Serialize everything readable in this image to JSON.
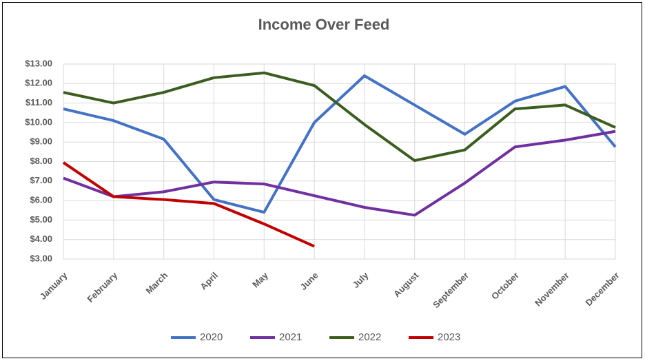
{
  "chart_data": {
    "type": "line",
    "title": "Income Over Feed",
    "categories": [
      "January",
      "February",
      "March",
      "April",
      "May",
      "June",
      "July",
      "August",
      "September",
      "October",
      "November",
      "December"
    ],
    "series": [
      {
        "name": "2020",
        "color": "#4472c4",
        "values": [
          10.7,
          10.1,
          9.15,
          6.05,
          5.4,
          10.0,
          12.4,
          10.9,
          9.4,
          11.1,
          11.85,
          8.75
        ]
      },
      {
        "name": "2021",
        "color": "#7030a0",
        "values": [
          7.15,
          6.2,
          6.45,
          6.95,
          6.85,
          6.25,
          5.65,
          5.25,
          6.9,
          8.75,
          9.1,
          9.55
        ]
      },
      {
        "name": "2022",
        "color": "#3b5e1f",
        "values": [
          11.55,
          11.0,
          11.55,
          12.3,
          12.55,
          11.9,
          9.9,
          8.05,
          8.6,
          10.7,
          10.9,
          9.75
        ]
      },
      {
        "name": "2023",
        "color": "#c00000",
        "values": [
          7.95,
          6.2,
          6.05,
          5.85,
          4.8,
          3.65,
          null,
          null,
          null,
          null,
          null,
          null
        ]
      }
    ],
    "ylim": [
      3,
      13
    ],
    "yticks": [
      {
        "value": 3,
        "label": "$3.00"
      },
      {
        "value": 4,
        "label": "$4.00"
      },
      {
        "value": 5,
        "label": "$5.00"
      },
      {
        "value": 6,
        "label": "$6.00"
      },
      {
        "value": 7,
        "label": "$7.00"
      },
      {
        "value": 8,
        "label": "$8.00"
      },
      {
        "value": 9,
        "label": "$9.00"
      },
      {
        "value": 10,
        "label": "$10.00"
      },
      {
        "value": 11,
        "label": "$11.00"
      },
      {
        "value": 12,
        "label": "$12.00"
      },
      {
        "value": 13,
        "label": "$13.00"
      }
    ],
    "grid": true,
    "legend": "bottom"
  }
}
